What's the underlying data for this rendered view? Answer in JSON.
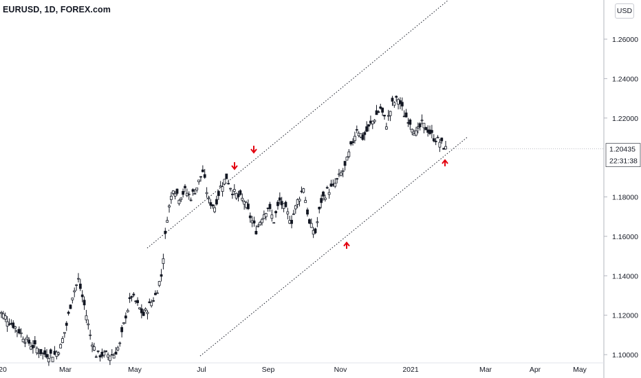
{
  "header": {
    "title": "EURUSD, 1D, FOREX.com"
  },
  "currency_button": "USD",
  "price_tag": {
    "value": "1.20435",
    "countdown": "22:31:38"
  },
  "colors": {
    "candle": "#131722",
    "arrow": "#e3000f",
    "channel": "#131722",
    "axis_line": "#b2b5be",
    "text": "#131722"
  },
  "chart_data": {
    "type": "candlestick",
    "title": "EURUSD, 1D, FOREX.com",
    "ylim": [
      1.1,
      1.275
    ],
    "y_ticks": [
      "1.26000",
      "1.24000",
      "1.22000",
      "1.18000",
      "1.16000",
      "1.14000",
      "1.12000",
      "1.10000"
    ],
    "x_ticks": [
      "20",
      "Mar",
      "May",
      "Jul",
      "Sep",
      "Nov",
      "2021",
      "Mar",
      "Apr",
      "May"
    ],
    "last_price": 1.20435,
    "close_series": [
      1.121,
      1.118,
      1.115,
      1.112,
      1.108,
      1.105,
      1.103,
      1.1005,
      1.1,
      1.1,
      1.104,
      1.115,
      1.13,
      1.138,
      1.125,
      1.11,
      1.1,
      1.1,
      1.1,
      1.1,
      1.105,
      1.12,
      1.13,
      1.125,
      1.12,
      1.125,
      1.13,
      1.14,
      1.17,
      1.185,
      1.18,
      1.183,
      1.18,
      1.185,
      1.193,
      1.178,
      1.175,
      1.185,
      1.19,
      1.183,
      1.18,
      1.178,
      1.17,
      1.163,
      1.17,
      1.175,
      1.168,
      1.178,
      1.173,
      1.168,
      1.178,
      1.185,
      1.166,
      1.162,
      1.178,
      1.183,
      1.185,
      1.19,
      1.195,
      1.205,
      1.215,
      1.21,
      1.215,
      1.22,
      1.225,
      1.217,
      1.227,
      1.23,
      1.222,
      1.218,
      1.212,
      1.217,
      1.214,
      1.21,
      1.208,
      1.2043
    ],
    "channel": {
      "upper_line": [
        [
          1.155,
          0.0
        ],
        [
          1.275,
          1.0
        ]
      ],
      "lower_line": [
        [
          1.1,
          0.0
        ],
        [
          1.21,
          1.0
        ]
      ]
    },
    "annotations": [
      {
        "type": "arrow-down",
        "near_price": 1.1955
      },
      {
        "type": "arrow-down",
        "near_price": 1.2
      },
      {
        "type": "arrow-up",
        "near_price": 1.159
      },
      {
        "type": "arrow-up",
        "near_price": 1.1965
      }
    ]
  }
}
